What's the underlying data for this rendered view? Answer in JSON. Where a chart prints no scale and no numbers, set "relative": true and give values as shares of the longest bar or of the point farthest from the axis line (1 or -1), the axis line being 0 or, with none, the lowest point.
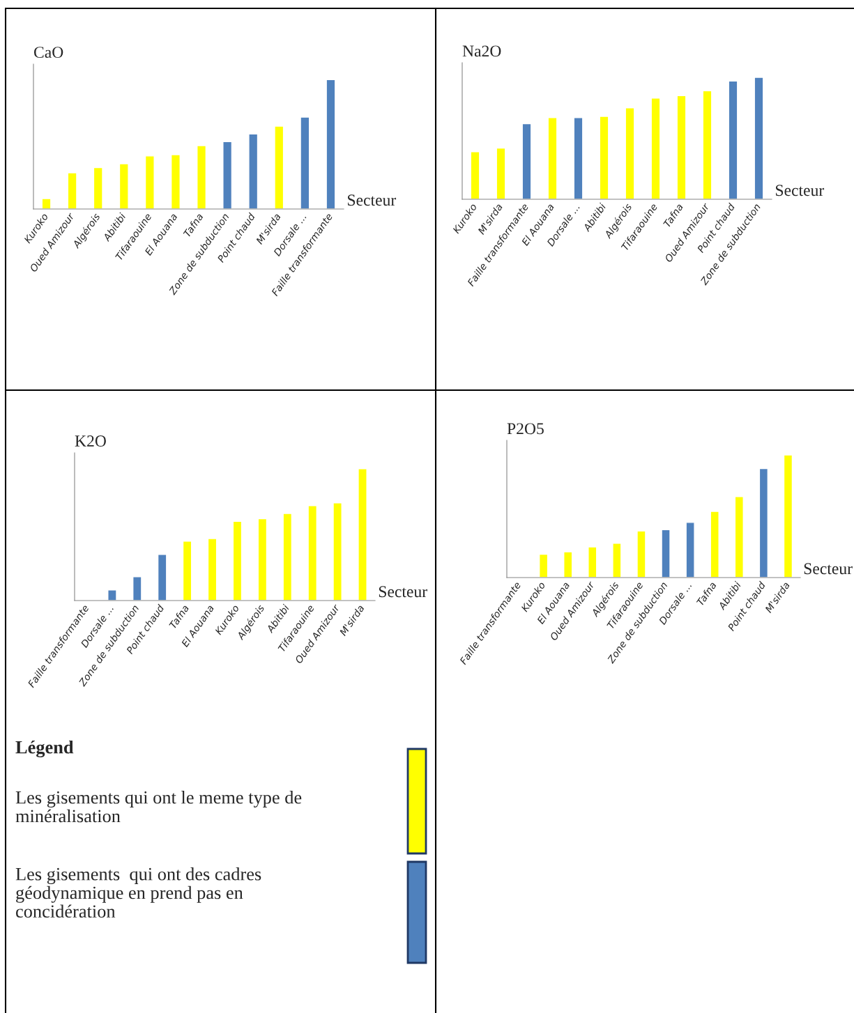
{
  "chart_data": [
    {
      "type": "bar",
      "title": "CaO",
      "xlabel": "Secteur",
      "relative": true,
      "categories": [
        "Kuroko",
        "Oued Amizour",
        "Algérois",
        "Abitibi",
        "Tifaraouine",
        "El Aouana",
        "Tafna",
        "Zone de subduction",
        "Point chaud",
        "M'sirda",
        "Dorsale ...",
        "Faille transformante"
      ],
      "values": [
        0.08,
        0.28,
        0.32,
        0.35,
        0.41,
        0.42,
        0.49,
        0.52,
        0.58,
        0.64,
        0.71,
        1
      ],
      "colors": [
        "#ffff00",
        "#ffff00",
        "#ffff00",
        "#ffff00",
        "#ffff00",
        "#ffff00",
        "#ffff00",
        "#4f81bd",
        "#4f81bd",
        "#ffff00",
        "#4f81bd",
        "#4f81bd"
      ]
    },
    {
      "type": "bar",
      "title": "Na2O",
      "xlabel": "Secteur",
      "relative": true,
      "categories": [
        "Kuroko",
        "M'sirda",
        "Faille transformante",
        "El Aouana",
        "Dorsale ...",
        "Abitibi",
        "Algérois",
        "Tifaraouine",
        "Tafna",
        "Oued Amizour",
        "Point chaud",
        "Zone de subduction"
      ],
      "values": [
        0.39,
        0.42,
        0.62,
        0.67,
        0.67,
        0.68,
        0.75,
        0.83,
        0.85,
        0.89,
        0.97,
        1
      ],
      "colors": [
        "#ffff00",
        "#ffff00",
        "#4f81bd",
        "#ffff00",
        "#4f81bd",
        "#ffff00",
        "#ffff00",
        "#ffff00",
        "#ffff00",
        "#ffff00",
        "#4f81bd",
        "#4f81bd"
      ]
    },
    {
      "type": "bar",
      "title": "K2O",
      "xlabel": "Secteur",
      "relative": true,
      "categories": [
        "Faille transformante",
        "Dorsale ...",
        "Zone de subduction",
        "Point chaud",
        "Tafna",
        "El Aouana",
        "Kuroko",
        "Algérois",
        "Abitibi",
        "Tifaraouine",
        "Oued Amizour",
        "M'sirda"
      ],
      "values": [
        0,
        0.08,
        0.18,
        0.35,
        0.45,
        0.47,
        0.6,
        0.62,
        0.66,
        0.72,
        0.74,
        1
      ],
      "colors": [
        null,
        "#4f81bd",
        "#4f81bd",
        "#4f81bd",
        "#ffff00",
        "#ffff00",
        "#ffff00",
        "#ffff00",
        "#ffff00",
        "#ffff00",
        "#ffff00",
        "#ffff00"
      ]
    },
    {
      "type": "bar",
      "title": "P2O5",
      "xlabel": "Secteur",
      "relative": true,
      "categories": [
        "Faille transformante",
        "Kuroko",
        "El Aouana",
        "Oued Amizour",
        "Algérois",
        "Tifaraouine",
        "Zone de subduction",
        "Dorsale ...",
        "Tafna",
        "Abitibi",
        "Point chaud",
        "M'sirda"
      ],
      "values": [
        0,
        0.19,
        0.21,
        0.25,
        0.28,
        0.38,
        0.39,
        0.45,
        0.54,
        0.66,
        0.89,
        1
      ],
      "colors": [
        null,
        "#ffff00",
        "#ffff00",
        "#ffff00",
        "#ffff00",
        "#ffff00",
        "#4f81bd",
        "#4f81bd",
        "#ffff00",
        "#ffff00",
        "#4f81bd",
        "#ffff00"
      ]
    },
    {
      "type": "other",
      "title": "Légend",
      "annotations": [
        "Les gisements qui ont le meme type de\nminéralisation",
        "Les gisements  qui ont des cadres\ngéodynamique en prend pas en\nconcidération"
      ]
    }
  ]
}
